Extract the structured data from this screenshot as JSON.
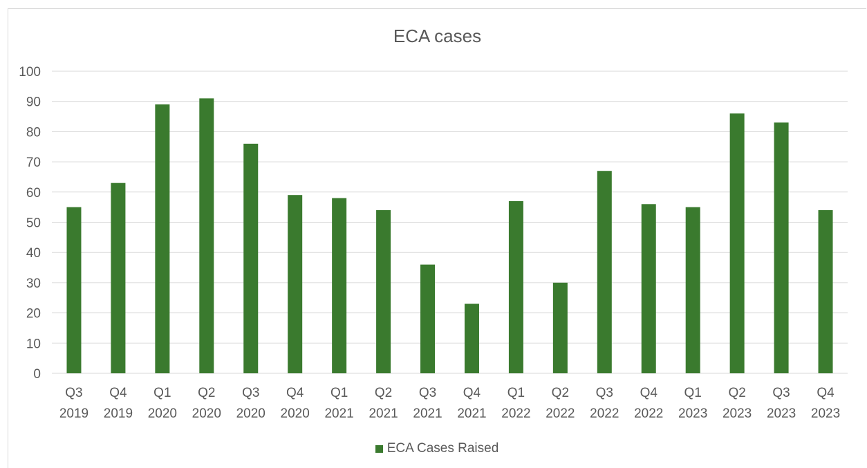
{
  "colors": {
    "bar": "#3a7a2e",
    "grid": "#d9d9d9",
    "text": "#595959"
  },
  "chart_data": {
    "type": "bar",
    "title": "ECA cases",
    "xlabel": "",
    "ylabel": "",
    "ylim": [
      0,
      100
    ],
    "yticks": [
      0,
      10,
      20,
      30,
      40,
      50,
      60,
      70,
      80,
      90,
      100
    ],
    "grid": true,
    "legend_position": "bottom",
    "categories": [
      [
        "Q3",
        "2019"
      ],
      [
        "Q4",
        "2019"
      ],
      [
        "Q1",
        "2020"
      ],
      [
        "Q2",
        "2020"
      ],
      [
        "Q3",
        "2020"
      ],
      [
        "Q4",
        "2020"
      ],
      [
        "Q1",
        "2021"
      ],
      [
        "Q2",
        "2021"
      ],
      [
        "Q3",
        "2021"
      ],
      [
        "Q4",
        "2021"
      ],
      [
        "Q1",
        "2022"
      ],
      [
        "Q2",
        "2022"
      ],
      [
        "Q3",
        "2022"
      ],
      [
        "Q4",
        "2022"
      ],
      [
        "Q1",
        "2023"
      ],
      [
        "Q2",
        "2023"
      ],
      [
        "Q3",
        "2023"
      ],
      [
        "Q4",
        "2023"
      ]
    ],
    "series": [
      {
        "name": "ECA Cases Raised",
        "values": [
          55,
          63,
          89,
          91,
          76,
          59,
          58,
          54,
          36,
          23,
          57,
          30,
          67,
          56,
          55,
          86,
          83,
          54
        ]
      }
    ]
  }
}
